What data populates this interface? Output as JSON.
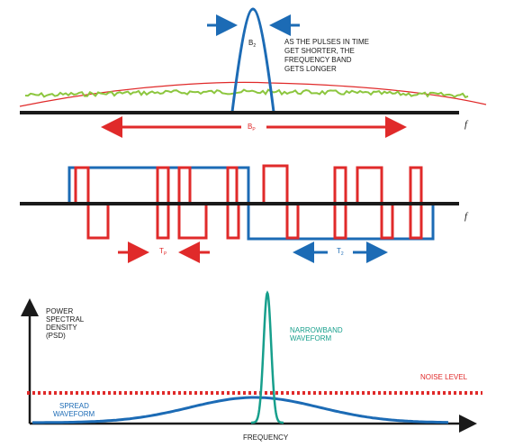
{
  "panel1": {
    "b2_label": "B",
    "b2_sub": "2",
    "annotation": [
      "AS THE PULSES IN TIME",
      "GET SHORTER, THE",
      "FREQUENCY BAND",
      "GETS LONGER"
    ],
    "bp_label": "B",
    "bp_sub": "P",
    "axis_label": "f",
    "colors": {
      "blue": "#1c6bb5",
      "red": "#e02a2a",
      "green": "#8cc63e",
      "axis": "#1a1a1a"
    }
  },
  "panel2": {
    "tp_label": "T",
    "tp_sub": "P",
    "t2_label": "T",
    "t2_sub": "2",
    "axis_label": "f"
  },
  "panel3": {
    "psd_label": [
      "POWER",
      "SPECTRAL",
      "DENSITY",
      "(PSD)"
    ],
    "narrowband_label": [
      "NARROWBAND",
      "WAVEFORM"
    ],
    "noise_label": "NOISE LEVEL",
    "spread_label": [
      "SPREAD",
      "WAVEFORM"
    ],
    "x_axis_label": "FREQUENCY",
    "colors": {
      "teal": "#179f8c"
    }
  }
}
